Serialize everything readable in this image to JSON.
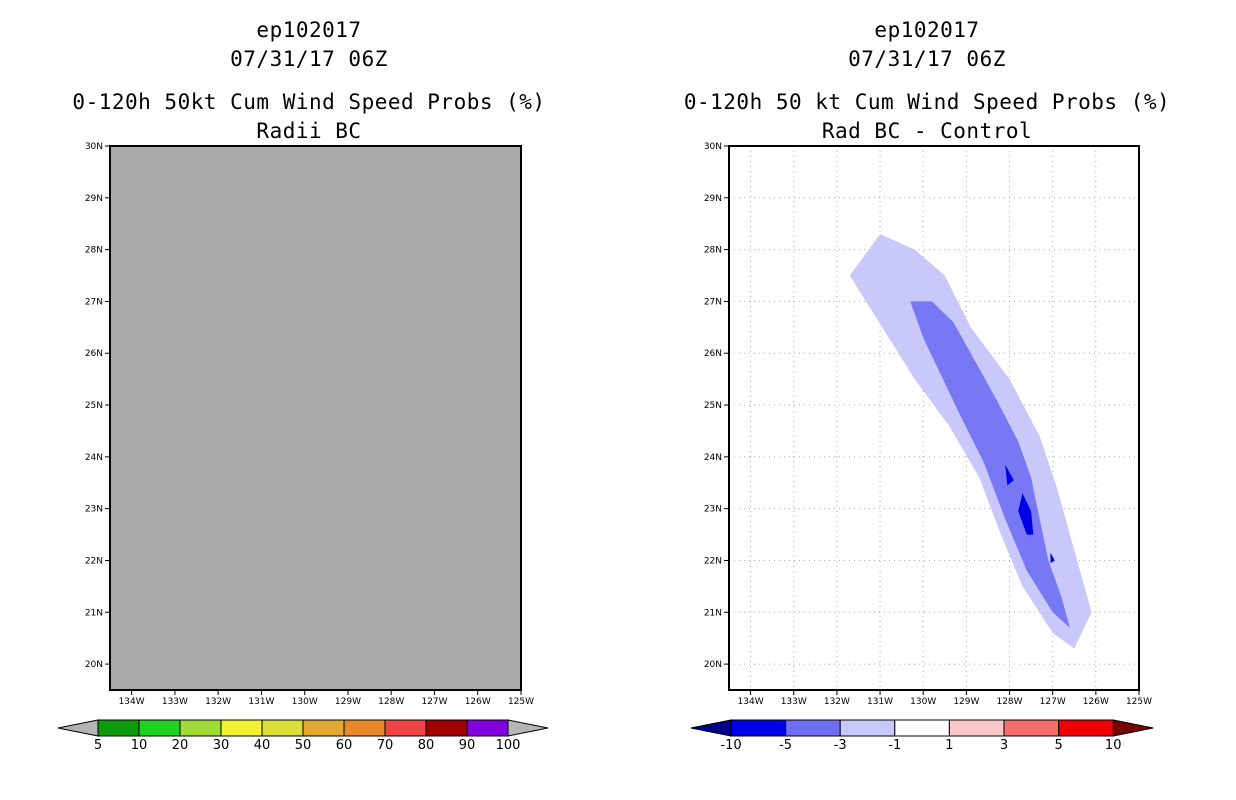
{
  "left_panel": {
    "storm_id": "ep102017",
    "datetime": "07/31/17 06Z",
    "title": "0-120h 50kt Cum Wind Speed Probs (%)",
    "subtitle": "Radii BC"
  },
  "right_panel": {
    "storm_id": "ep102017",
    "datetime": "07/31/17 06Z",
    "title": "0-120h 50 kt Cum Wind Speed Probs (%)",
    "subtitle": "Rad BC - Control"
  },
  "chart_data": [
    {
      "type": "heatmap",
      "title": "0-120h 50kt Cum Wind Speed Probs (%)",
      "subtitle": "Radii BC",
      "x_ticks": [
        "134W",
        "133W",
        "132W",
        "131W",
        "130W",
        "129W",
        "128W",
        "127W",
        "126W",
        "125W"
      ],
      "y_ticks": [
        "20N",
        "21N",
        "22N",
        "23N",
        "24N",
        "25N",
        "26N",
        "27N",
        "28N",
        "29N",
        "30N"
      ],
      "xlim": [
        -134.5,
        -125
      ],
      "ylim": [
        19.5,
        30
      ],
      "field_color": "#aaaaaa",
      "note": "entire domain undefined (grey)",
      "colorbar": {
        "labels": [
          "5",
          "10",
          "20",
          "30",
          "40",
          "50",
          "60",
          "70",
          "80",
          "90",
          "100"
        ],
        "colors": [
          "#0a9a0a",
          "#1fd21f",
          "#a0dc37",
          "#f2f234",
          "#dcdc3a",
          "#e2a832",
          "#e88a2a",
          "#ee4646",
          "#a00000",
          "#8200dc"
        ],
        "under_color": "#b4b4b4",
        "over_color": "#b4b4b4"
      }
    },
    {
      "type": "heatmap",
      "title": "0-120h 50 kt Cum Wind Speed Probs (%)",
      "subtitle": "Rad BC - Control",
      "x_ticks": [
        "134W",
        "133W",
        "132W",
        "131W",
        "130W",
        "129W",
        "128W",
        "127W",
        "126W",
        "125W"
      ],
      "y_ticks": [
        "20N",
        "21N",
        "22N",
        "23N",
        "24N",
        "25N",
        "26N",
        "27N",
        "28N",
        "29N",
        "30N"
      ],
      "xlim": [
        -134.5,
        -125
      ],
      "ylim": [
        19.5,
        30
      ],
      "grid": true,
      "contours": [
        {
          "level": "-3 to -1",
          "color": "#c8c8fa",
          "points": [
            [
              -131.7,
              27.5
            ],
            [
              -131.0,
              28.3
            ],
            [
              -130.2,
              28.0
            ],
            [
              -129.5,
              27.5
            ],
            [
              -128.9,
              26.5
            ],
            [
              -128.0,
              25.5
            ],
            [
              -127.3,
              24.4
            ],
            [
              -126.9,
              23.4
            ],
            [
              -126.5,
              22.2
            ],
            [
              -126.1,
              21.0
            ],
            [
              -126.5,
              20.3
            ],
            [
              -127.0,
              20.6
            ],
            [
              -127.7,
              21.5
            ],
            [
              -128.2,
              22.5
            ],
            [
              -128.7,
              23.6
            ],
            [
              -129.4,
              24.6
            ],
            [
              -130.2,
              25.5
            ],
            [
              -130.8,
              26.3
            ]
          ]
        },
        {
          "level": "-5 to -3",
          "color": "#7878f5",
          "points": [
            [
              -129.8,
              27.0
            ],
            [
              -129.3,
              26.6
            ],
            [
              -128.9,
              26.0
            ],
            [
              -128.3,
              25.1
            ],
            [
              -127.8,
              24.3
            ],
            [
              -127.5,
              23.6
            ],
            [
              -127.3,
              22.8
            ],
            [
              -127.1,
              22.0
            ],
            [
              -126.8,
              21.3
            ],
            [
              -126.6,
              20.7
            ],
            [
              -127.0,
              21.0
            ],
            [
              -127.6,
              21.8
            ],
            [
              -128.1,
              22.8
            ],
            [
              -128.6,
              23.9
            ],
            [
              -129.2,
              24.9
            ],
            [
              -129.6,
              25.6
            ],
            [
              -130.0,
              26.3
            ],
            [
              -130.3,
              27.0
            ]
          ]
        },
        {
          "level": "-10 to -5",
          "color": "#0000e6",
          "points": [
            [
              -128.1,
              23.85
            ],
            [
              -127.9,
              23.55
            ],
            [
              -128.05,
              23.45
            ]
          ]
        },
        {
          "level": "-10 to -5",
          "color": "#0000e6",
          "points": [
            [
              -127.7,
              23.3
            ],
            [
              -127.5,
              22.95
            ],
            [
              -127.45,
              22.5
            ],
            [
              -127.6,
              22.5
            ],
            [
              -127.8,
              22.95
            ]
          ]
        },
        {
          "level": "-10 to -5",
          "color": "#0000e6",
          "points": [
            [
              -127.05,
              22.15
            ],
            [
              -126.95,
              22.0
            ],
            [
              -127.05,
              21.95
            ]
          ]
        }
      ],
      "colorbar": {
        "labels": [
          "-10",
          "-5",
          "-3",
          "-1",
          "1",
          "3",
          "5",
          "10"
        ],
        "colors": [
          "#0000e6",
          "#6e6ef5",
          "#c8c8fa",
          "#ffffff",
          "#fac8c8",
          "#f56e6e",
          "#f00000"
        ],
        "under_color": "#00008c",
        "over_color": "#780000"
      }
    }
  ]
}
